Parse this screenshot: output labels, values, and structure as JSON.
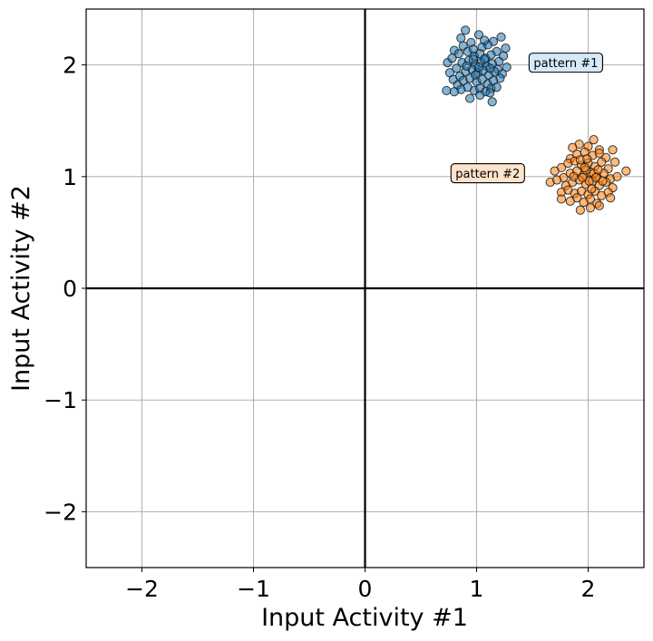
{
  "chart_data": {
    "type": "scatter",
    "title": "",
    "xlabel": "Input Activity #1",
    "ylabel": "Input Activity #2",
    "xlim": [
      -2.5,
      2.5
    ],
    "ylim": [
      -2.5,
      2.5
    ],
    "xticks": [
      -2,
      -1,
      0,
      1,
      2
    ],
    "yticks": [
      -2,
      -1,
      0,
      1,
      2
    ],
    "xtick_labels": [
      "−2",
      "−1",
      "0",
      "1",
      "2"
    ],
    "ytick_labels": [
      "−2",
      "−1",
      "0",
      "1",
      "2"
    ],
    "grid": true,
    "zero_lines": true,
    "series": [
      {
        "color": "#1f77b4",
        "center": [
          1.0,
          2.0
        ],
        "points": [
          [
            0.9,
            2.31
          ],
          [
            1.02,
            2.27
          ],
          [
            1.15,
            2.21
          ],
          [
            1.22,
            2.25
          ],
          [
            0.8,
            2.13
          ],
          [
            0.88,
            2.17
          ],
          [
            0.95,
            2.2
          ],
          [
            1.05,
            2.16
          ],
          [
            1.1,
            2.18
          ],
          [
            1.18,
            2.12
          ],
          [
            1.24,
            2.08
          ],
          [
            0.74,
            2.02
          ],
          [
            0.78,
            2.06
          ],
          [
            0.84,
            2.1
          ],
          [
            0.92,
            2.12
          ],
          [
            0.98,
            2.08
          ],
          [
            1.03,
            2.1
          ],
          [
            1.08,
            2.06
          ],
          [
            1.13,
            2.09
          ],
          [
            1.2,
            2.03
          ],
          [
            1.27,
            1.98
          ],
          [
            0.76,
            1.93
          ],
          [
            0.82,
            1.97
          ],
          [
            0.87,
            2.02
          ],
          [
            0.93,
            2.04
          ],
          [
            0.99,
            2.0
          ],
          [
            1.04,
            2.02
          ],
          [
            1.09,
            1.99
          ],
          [
            1.14,
            2.01
          ],
          [
            1.19,
            1.96
          ],
          [
            1.23,
            1.92
          ],
          [
            0.79,
            1.87
          ],
          [
            0.85,
            1.9
          ],
          [
            0.9,
            1.94
          ],
          [
            0.96,
            1.96
          ],
          [
            1.01,
            1.93
          ],
          [
            1.06,
            1.95
          ],
          [
            1.11,
            1.91
          ],
          [
            1.16,
            1.94
          ],
          [
            1.21,
            1.88
          ],
          [
            0.83,
            1.82
          ],
          [
            0.88,
            1.86
          ],
          [
            0.94,
            1.88
          ],
          [
            1.0,
            1.85
          ],
          [
            1.05,
            1.87
          ],
          [
            1.1,
            1.83
          ],
          [
            1.15,
            1.86
          ],
          [
            0.86,
            1.78
          ],
          [
            0.92,
            1.8
          ],
          [
            0.98,
            1.77
          ],
          [
            1.03,
            1.79
          ],
          [
            1.08,
            1.76
          ],
          [
            1.13,
            1.79
          ],
          [
            0.73,
            1.77
          ],
          [
            0.8,
            1.76
          ],
          [
            0.94,
            1.7
          ],
          [
            1.03,
            1.73
          ],
          [
            1.14,
            1.67
          ],
          [
            1.12,
            1.75
          ],
          [
            1.18,
            1.8
          ],
          [
            0.97,
            2.14
          ],
          [
            1.07,
            2.22
          ],
          [
            0.86,
            2.24
          ],
          [
            1.26,
            2.15
          ],
          [
            0.99,
            1.91
          ],
          [
            0.91,
            1.99
          ],
          [
            1.02,
            1.98
          ],
          [
            1.12,
            1.97
          ],
          [
            0.97,
            2.05
          ],
          [
            1.07,
            2.05
          ]
        ]
      },
      {
        "color": "#ff7f0e",
        "center": [
          2.0,
          1.0
        ],
        "points": [
          [
            2.05,
            1.33
          ],
          [
            1.92,
            1.29
          ],
          [
            1.86,
            1.26
          ],
          [
            2.0,
            1.27
          ],
          [
            2.1,
            1.24
          ],
          [
            2.22,
            1.24
          ],
          [
            1.84,
            1.16
          ],
          [
            1.9,
            1.2
          ],
          [
            1.97,
            1.22
          ],
          [
            2.04,
            1.19
          ],
          [
            2.1,
            1.21
          ],
          [
            2.16,
            1.17
          ],
          [
            1.76,
            1.08
          ],
          [
            1.82,
            1.12
          ],
          [
            1.88,
            1.14
          ],
          [
            1.94,
            1.1
          ],
          [
            2.0,
            1.12
          ],
          [
            2.06,
            1.09
          ],
          [
            2.12,
            1.13
          ],
          [
            2.18,
            1.07
          ],
          [
            2.24,
            1.13
          ],
          [
            1.78,
            0.99
          ],
          [
            1.84,
            1.03
          ],
          [
            1.9,
            1.05
          ],
          [
            1.96,
            1.01
          ],
          [
            2.02,
            1.04
          ],
          [
            2.08,
            1.0
          ],
          [
            2.14,
            1.03
          ],
          [
            2.2,
            0.98
          ],
          [
            2.26,
            1.0
          ],
          [
            2.34,
            1.05
          ],
          [
            1.66,
            0.95
          ],
          [
            1.72,
            0.97
          ],
          [
            1.8,
            0.92
          ],
          [
            1.86,
            0.95
          ],
          [
            1.92,
            0.97
          ],
          [
            1.98,
            0.93
          ],
          [
            2.04,
            0.96
          ],
          [
            2.1,
            0.92
          ],
          [
            2.16,
            0.95
          ],
          [
            2.22,
            0.9
          ],
          [
            1.76,
            0.86
          ],
          [
            1.82,
            0.88
          ],
          [
            1.88,
            0.85
          ],
          [
            1.94,
            0.87
          ],
          [
            2.0,
            0.84
          ],
          [
            2.06,
            0.87
          ],
          [
            2.12,
            0.83
          ],
          [
            2.18,
            0.86
          ],
          [
            1.84,
            0.78
          ],
          [
            1.9,
            0.81
          ],
          [
            1.96,
            0.77
          ],
          [
            2.02,
            0.8
          ],
          [
            2.08,
            0.76
          ],
          [
            1.93,
            0.7
          ],
          [
            2.02,
            0.72
          ],
          [
            2.1,
            0.74
          ],
          [
            2.2,
            0.81
          ],
          [
            1.76,
            0.8
          ],
          [
            1.7,
            1.05
          ],
          [
            1.98,
            1.06
          ],
          [
            2.05,
            1.03
          ],
          [
            1.95,
            0.99
          ],
          [
            2.01,
            0.96
          ],
          [
            2.07,
            0.99
          ],
          [
            1.93,
            1.15
          ],
          [
            2.13,
            0.96
          ],
          [
            1.87,
            1.0
          ],
          [
            1.99,
            1.16
          ],
          [
            2.03,
            0.89
          ],
          [
            1.97,
            1.08
          ],
          [
            2.09,
            1.06
          ]
        ]
      }
    ],
    "annotations": [
      {
        "text": "pattern #1",
        "x": 1.8,
        "y": 2.02,
        "bg": "#d6e9f8"
      },
      {
        "text": "pattern #2",
        "x": 1.1,
        "y": 1.03,
        "bg": "#ffe3cc"
      }
    ]
  }
}
